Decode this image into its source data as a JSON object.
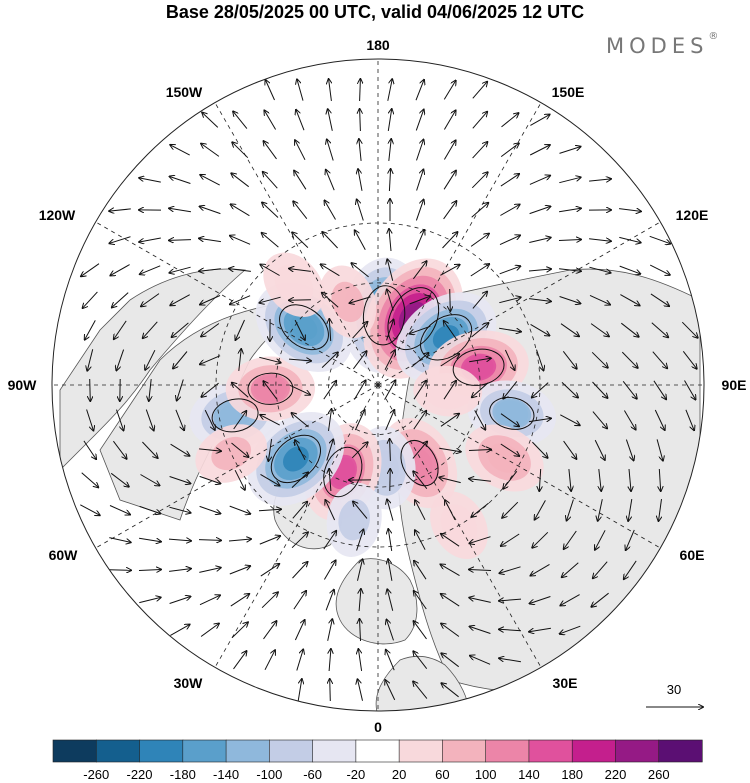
{
  "title": "Base 28/05/2025 00 UTC, valid 04/06/2025 12 UTC",
  "brand": "MODES",
  "brand_mark": "®",
  "meridian_labels": {
    "lon_180": "180",
    "lon_150e": "150E",
    "lon_120e": "120E",
    "lon_90e": "90E",
    "lon_60e": "60E",
    "lon_30e": "30E",
    "lon_0": "0",
    "lon_30w": "30W",
    "lon_60w": "60W",
    "lon_90w": "90W",
    "lon_120w": "120W",
    "lon_150w": "150W"
  },
  "vector_scale": {
    "label": "30"
  },
  "colorbar": {
    "labels": [
      "-260",
      "-220",
      "-180",
      "-140",
      "-100",
      "-60",
      "-20",
      "20",
      "60",
      "100",
      "140",
      "180",
      "220",
      "260"
    ],
    "colors": [
      "#0d3b5e",
      "#145f8e",
      "#2f84b8",
      "#5a9fcb",
      "#8fb8dc",
      "#c3cde6",
      "#e6e6f2",
      "#ffffff",
      "#f8d9dc",
      "#f3b3bd",
      "#ec85a8",
      "#e0519d",
      "#c41f8d",
      "#951a85",
      "#5b0f73"
    ]
  },
  "map": {
    "projection": "north polar stereographic",
    "land_color": "#e8e8e8",
    "anomalies": [
      {
        "lon": 175,
        "lat": 62,
        "value": -200
      },
      {
        "lon": 152,
        "lat": 60,
        "value": 240
      },
      {
        "lon": 125,
        "lat": 57,
        "value": -180
      },
      {
        "lon": 100,
        "lat": 50,
        "value": 150
      },
      {
        "lon": 78,
        "lat": 38,
        "value": -110
      },
      {
        "lon": 60,
        "lat": 35,
        "value": 90
      },
      {
        "lon": 28,
        "lat": 55,
        "value": 130
      },
      {
        "lon": 5,
        "lat": 57,
        "value": -90
      },
      {
        "lon": -22,
        "lat": 53,
        "value": 150
      },
      {
        "lon": -48,
        "lat": 47,
        "value": -180
      },
      {
        "lon": -78,
        "lat": 35,
        "value": -120
      },
      {
        "lon": -88,
        "lat": 48,
        "value": 110
      },
      {
        "lon": -128,
        "lat": 53,
        "value": -170
      },
      {
        "lon": -160,
        "lat": 55,
        "value": 60
      },
      {
        "lon": -140,
        "lat": 40,
        "value": 50
      },
      {
        "lon": -65,
        "lat": 30,
        "value": 60
      },
      {
        "lon": 30,
        "lat": 30,
        "value": 50
      },
      {
        "lon": -10,
        "lat": 38,
        "value": -60
      },
      {
        "lon": 85,
        "lat": 62,
        "value": 40
      }
    ]
  }
}
